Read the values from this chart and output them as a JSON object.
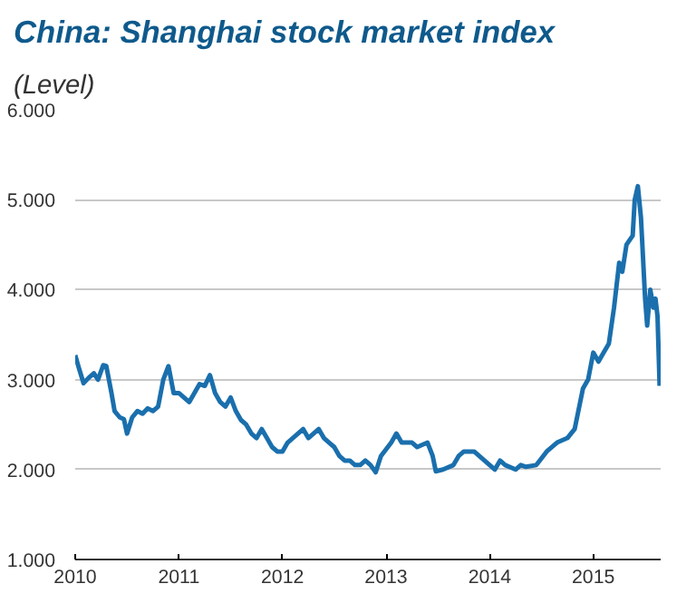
{
  "chart_data": {
    "type": "line",
    "title": "China: Shanghai stock market index",
    "subtitle": "(Level)",
    "xlim": [
      2010,
      2015.65
    ],
    "xticks": [
      2010,
      2011,
      2012,
      2013,
      2014,
      2015
    ],
    "ylim": [
      1000,
      6000
    ],
    "yticks": [
      {
        "value": 1000,
        "label": "1.000"
      },
      {
        "value": 2000,
        "label": "2.000"
      },
      {
        "value": 3000,
        "label": "3.000"
      },
      {
        "value": 4000,
        "label": "4.000"
      },
      {
        "value": 5000,
        "label": "5.000"
      },
      {
        "value": 6000,
        "label": "6.000"
      }
    ],
    "grid": "y",
    "x": [
      2010.0,
      2010.03,
      2010.08,
      2010.13,
      2010.18,
      2010.22,
      2010.27,
      2010.3,
      2010.35,
      2010.38,
      2010.43,
      2010.47,
      2010.5,
      2010.55,
      2010.6,
      2010.65,
      2010.7,
      2010.75,
      2010.8,
      2010.85,
      2010.9,
      2010.95,
      2011.0,
      2011.05,
      2011.1,
      2011.15,
      2011.2,
      2011.25,
      2011.3,
      2011.35,
      2011.4,
      2011.45,
      2011.5,
      2011.55,
      2011.6,
      2011.65,
      2011.7,
      2011.75,
      2011.8,
      2011.85,
      2011.9,
      2011.95,
      2012.0,
      2012.05,
      2012.1,
      2012.15,
      2012.2,
      2012.25,
      2012.3,
      2012.35,
      2012.4,
      2012.45,
      2012.5,
      2012.55,
      2012.6,
      2012.65,
      2012.7,
      2012.75,
      2012.8,
      2012.85,
      2012.9,
      2012.95,
      2013.05,
      2013.1,
      2013.15,
      2013.25,
      2013.3,
      2013.4,
      2013.45,
      2013.48,
      2013.55,
      2013.65,
      2013.7,
      2013.75,
      2013.85,
      2013.9,
      2014.0,
      2014.05,
      2014.1,
      2014.15,
      2014.25,
      2014.3,
      2014.35,
      2014.45,
      2014.55,
      2014.65,
      2014.75,
      2014.82,
      2014.9,
      2014.95,
      2015.0,
      2015.05,
      2015.1,
      2015.15,
      2015.2,
      2015.25,
      2015.28,
      2015.32,
      2015.38,
      2015.4,
      2015.43,
      2015.46,
      2015.5,
      2015.52,
      2015.55,
      2015.58,
      2015.6,
      2015.62,
      2015.64
    ],
    "series": [
      {
        "color": "#1a6fad",
        "values": [
          3270,
          3150,
          2960,
          3020,
          3070,
          3000,
          3160,
          3150,
          2850,
          2650,
          2580,
          2560,
          2400,
          2580,
          2650,
          2620,
          2680,
          2650,
          2700,
          3000,
          3150,
          2850,
          2850,
          2800,
          2750,
          2850,
          2950,
          2930,
          3050,
          2850,
          2750,
          2700,
          2800,
          2650,
          2550,
          2500,
          2400,
          2350,
          2450,
          2350,
          2250,
          2200,
          2200,
          2300,
          2350,
          2400,
          2450,
          2350,
          2400,
          2450,
          2350,
          2300,
          2250,
          2150,
          2100,
          2100,
          2050,
          2050,
          2100,
          2050,
          1970,
          2150,
          2300,
          2400,
          2300,
          2300,
          2250,
          2300,
          2150,
          1980,
          2000,
          2050,
          2150,
          2200,
          2200,
          2150,
          2050,
          2000,
          2100,
          2050,
          2000,
          2050,
          2030,
          2050,
          2200,
          2300,
          2350,
          2450,
          2900,
          3000,
          3300,
          3200,
          3300,
          3400,
          3800,
          4300,
          4200,
          4500,
          4600,
          5000,
          5150,
          4800,
          3900,
          3600,
          4000,
          3800,
          3900,
          3700,
          2930
        ]
      }
    ]
  }
}
